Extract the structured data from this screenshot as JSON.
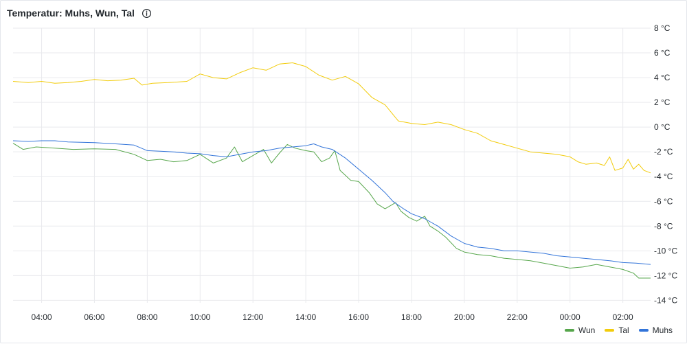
{
  "panel": {
    "title": "Temperatur: Muhs, Wun, Tal",
    "info_icon": "info-circle-icon"
  },
  "chart_data": {
    "type": "line",
    "x_ticks": [
      "04:00",
      "06:00",
      "08:00",
      "10:00",
      "12:00",
      "14:00",
      "16:00",
      "18:00",
      "20:00",
      "22:00",
      "00:00",
      "02:00"
    ],
    "x_tick_hours": [
      4,
      6,
      8,
      10,
      12,
      14,
      16,
      18,
      20,
      22,
      24,
      26
    ],
    "xlim_hours": [
      2.92,
      27.05
    ],
    "y_ticks": [
      "8 °C",
      "6 °C",
      "4 °C",
      "2 °C",
      "0 °C",
      "-2 °C",
      "-4 °C",
      "-6 °C",
      "-8 °C",
      "-10 °C",
      "-12 °C",
      "-14 °C"
    ],
    "y_tick_values": [
      8,
      6,
      4,
      2,
      0,
      -2,
      -4,
      -6,
      -8,
      -10,
      -12,
      -14
    ],
    "ylim": [
      -14.2,
      8
    ],
    "grid": true,
    "legend_position": "bottom-right",
    "series": [
      {
        "name": "Wun",
        "color": "#56a64b",
        "points": [
          [
            2.92,
            -1.3
          ],
          [
            3.3,
            -1.8
          ],
          [
            3.8,
            -1.6
          ],
          [
            4.5,
            -1.7
          ],
          [
            5.2,
            -1.8
          ],
          [
            6,
            -1.75
          ],
          [
            6.8,
            -1.8
          ],
          [
            7.5,
            -2.2
          ],
          [
            8,
            -2.7
          ],
          [
            8.5,
            -2.6
          ],
          [
            9,
            -2.8
          ],
          [
            9.5,
            -2.7
          ],
          [
            10,
            -2.2
          ],
          [
            10.5,
            -2.9
          ],
          [
            11,
            -2.5
          ],
          [
            11.3,
            -1.6
          ],
          [
            11.6,
            -2.8
          ],
          [
            12,
            -2.3
          ],
          [
            12.4,
            -1.8
          ],
          [
            12.7,
            -2.9
          ],
          [
            13,
            -2.1
          ],
          [
            13.3,
            -1.4
          ],
          [
            13.6,
            -1.7
          ],
          [
            14,
            -1.9
          ],
          [
            14.3,
            -2
          ],
          [
            14.6,
            -2.8
          ],
          [
            14.9,
            -2.5
          ],
          [
            15.1,
            -1.9
          ],
          [
            15.3,
            -3.5
          ],
          [
            15.7,
            -4.3
          ],
          [
            16,
            -4.4
          ],
          [
            16.4,
            -5.3
          ],
          [
            16.7,
            -6.2
          ],
          [
            17,
            -6.6
          ],
          [
            17.4,
            -6.1
          ],
          [
            17.6,
            -6.8
          ],
          [
            17.9,
            -7.3
          ],
          [
            18.2,
            -7.6
          ],
          [
            18.5,
            -7.2
          ],
          [
            18.7,
            -8
          ],
          [
            19,
            -8.4
          ],
          [
            19.3,
            -8.9
          ],
          [
            19.7,
            -9.8
          ],
          [
            20,
            -10.1
          ],
          [
            20.5,
            -10.3
          ],
          [
            21,
            -10.4
          ],
          [
            21.5,
            -10.6
          ],
          [
            22,
            -10.7
          ],
          [
            22.5,
            -10.8
          ],
          [
            23,
            -11
          ],
          [
            23.5,
            -11.2
          ],
          [
            24,
            -11.4
          ],
          [
            24.5,
            -11.3
          ],
          [
            25,
            -11.1
          ],
          [
            25.5,
            -11.3
          ],
          [
            26,
            -11.5
          ],
          [
            26.4,
            -11.8
          ],
          [
            26.6,
            -12.2
          ],
          [
            27.05,
            -12.2
          ]
        ]
      },
      {
        "name": "Tal",
        "color": "#f2cc0c",
        "points": [
          [
            2.92,
            3.7
          ],
          [
            3.5,
            3.6
          ],
          [
            4,
            3.7
          ],
          [
            4.5,
            3.55
          ],
          [
            5,
            3.6
          ],
          [
            5.5,
            3.7
          ],
          [
            6,
            3.85
          ],
          [
            6.5,
            3.75
          ],
          [
            7,
            3.8
          ],
          [
            7.5,
            3.95
          ],
          [
            7.8,
            3.4
          ],
          [
            8.2,
            3.55
          ],
          [
            8.8,
            3.6
          ],
          [
            9.5,
            3.7
          ],
          [
            10,
            4.3
          ],
          [
            10.5,
            4.0
          ],
          [
            11,
            3.9
          ],
          [
            11.5,
            4.4
          ],
          [
            12,
            4.8
          ],
          [
            12.5,
            4.6
          ],
          [
            13,
            5.1
          ],
          [
            13.5,
            5.2
          ],
          [
            14,
            4.9
          ],
          [
            14.5,
            4.2
          ],
          [
            15,
            3.8
          ],
          [
            15.5,
            4.1
          ],
          [
            16,
            3.5
          ],
          [
            16.5,
            2.4
          ],
          [
            17,
            1.8
          ],
          [
            17.5,
            0.5
          ],
          [
            18,
            0.3
          ],
          [
            18.5,
            0.2
          ],
          [
            19,
            0.4
          ],
          [
            19.5,
            0.2
          ],
          [
            20,
            -0.2
          ],
          [
            20.5,
            -0.5
          ],
          [
            21,
            -1.1
          ],
          [
            21.5,
            -1.4
          ],
          [
            22,
            -1.7
          ],
          [
            22.5,
            -2
          ],
          [
            23,
            -2.1
          ],
          [
            23.5,
            -2.2
          ],
          [
            24,
            -2.4
          ],
          [
            24.3,
            -2.8
          ],
          [
            24.6,
            -3.0
          ],
          [
            25,
            -2.9
          ],
          [
            25.3,
            -3.1
          ],
          [
            25.5,
            -2.4
          ],
          [
            25.7,
            -3.5
          ],
          [
            26,
            -3.3
          ],
          [
            26.2,
            -2.6
          ],
          [
            26.4,
            -3.4
          ],
          [
            26.6,
            -3.0
          ],
          [
            26.8,
            -3.5
          ],
          [
            27.05,
            -3.7
          ]
        ]
      },
      {
        "name": "Muhs",
        "color": "#3274d9",
        "points": [
          [
            2.92,
            -1.1
          ],
          [
            3.5,
            -1.15
          ],
          [
            4,
            -1.1
          ],
          [
            4.5,
            -1.1
          ],
          [
            5,
            -1.2
          ],
          [
            6,
            -1.25
          ],
          [
            6.8,
            -1.35
          ],
          [
            7.5,
            -1.45
          ],
          [
            8,
            -1.9
          ],
          [
            8.5,
            -1.95
          ],
          [
            9,
            -2.0
          ],
          [
            9.5,
            -2.1
          ],
          [
            10,
            -2.15
          ],
          [
            10.5,
            -2.3
          ],
          [
            11,
            -2.4
          ],
          [
            11.5,
            -2.2
          ],
          [
            12,
            -2.0
          ],
          [
            12.5,
            -1.9
          ],
          [
            13,
            -1.7
          ],
          [
            13.5,
            -1.6
          ],
          [
            14,
            -1.5
          ],
          [
            14.3,
            -1.35
          ],
          [
            14.6,
            -1.6
          ],
          [
            15,
            -1.8
          ],
          [
            15.5,
            -2.5
          ],
          [
            16,
            -3.4
          ],
          [
            16.5,
            -4.3
          ],
          [
            17,
            -5.3
          ],
          [
            17.3,
            -6.0
          ],
          [
            17.7,
            -6.6
          ],
          [
            18,
            -7.0
          ],
          [
            18.5,
            -7.4
          ],
          [
            19,
            -8.0
          ],
          [
            19.5,
            -8.8
          ],
          [
            20,
            -9.4
          ],
          [
            20.5,
            -9.7
          ],
          [
            21,
            -9.8
          ],
          [
            21.5,
            -10.0
          ],
          [
            22,
            -10.0
          ],
          [
            22.5,
            -10.1
          ],
          [
            23,
            -10.2
          ],
          [
            23.5,
            -10.4
          ],
          [
            24,
            -10.5
          ],
          [
            24.5,
            -10.6
          ],
          [
            25,
            -10.7
          ],
          [
            25.5,
            -10.8
          ],
          [
            26,
            -10.95
          ],
          [
            26.5,
            -11.0
          ],
          [
            27.05,
            -11.1
          ]
        ]
      }
    ]
  },
  "legend": [
    {
      "label": "Wun",
      "color": "#56a64b"
    },
    {
      "label": "Tal",
      "color": "#f2cc0c"
    },
    {
      "label": "Muhs",
      "color": "#3274d9"
    }
  ]
}
